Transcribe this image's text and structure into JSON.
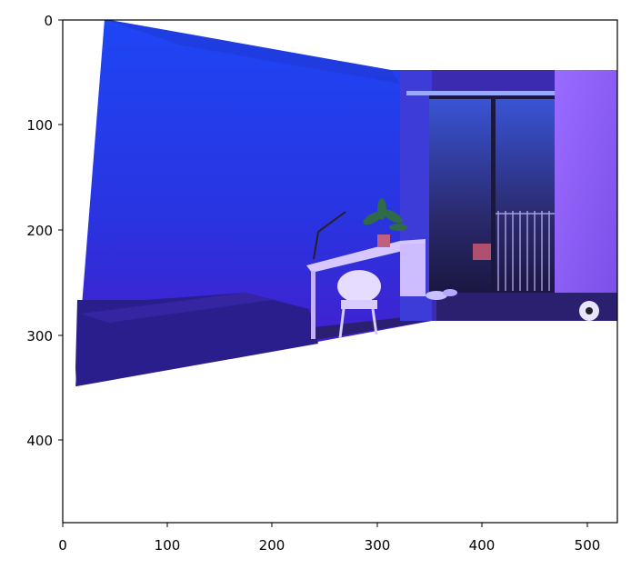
{
  "x_ticks": [
    "0",
    "100",
    "200",
    "300",
    "400",
    "500"
  ],
  "y_ticks": [
    "0",
    "100",
    "200",
    "300",
    "400"
  ],
  "colors": {
    "wall_top": "#1f3cf0",
    "wall_bottom": "#3a20c8",
    "couch": "#2a1e8a",
    "floor": "#2b1f78",
    "window_frame": "#2a2a7a",
    "right_wall": "#8a5cf0",
    "desk": "#c9b8ff"
  }
}
